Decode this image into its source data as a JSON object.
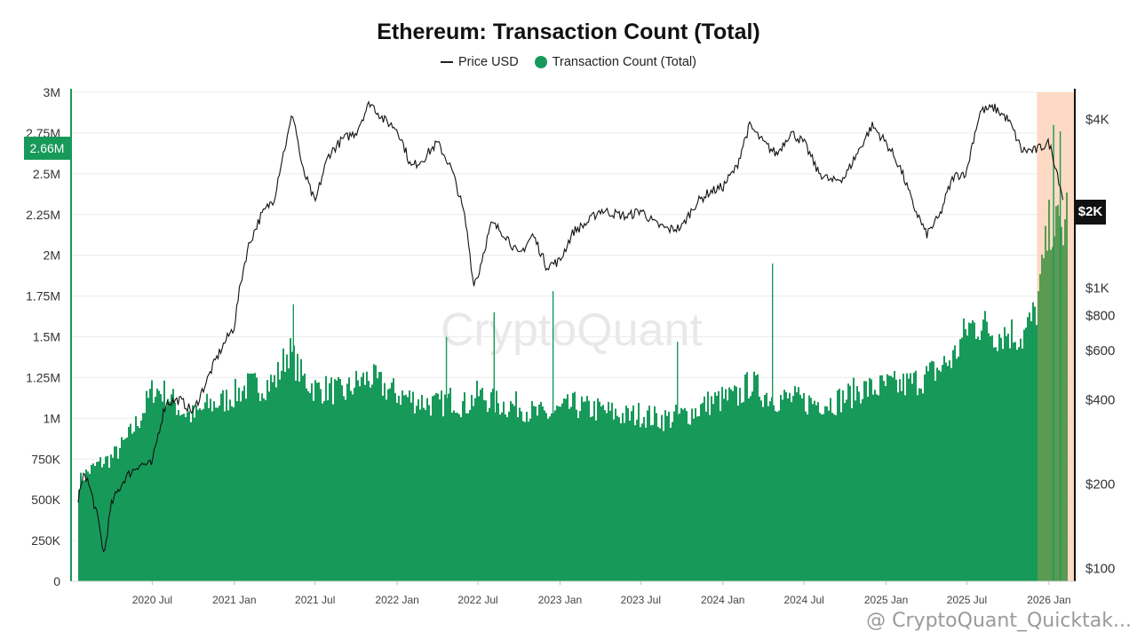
{
  "chart_data": {
    "type": "area",
    "title": "Ethereum: Transaction Count (Total)",
    "legend": {
      "placement": "top-center",
      "entries": [
        {
          "label": "Price USD",
          "marker": "line",
          "color": "#222222"
        },
        {
          "label": "Transaction Count (Total)",
          "marker": "dot",
          "color": "#17995a"
        }
      ]
    },
    "x_axis": {
      "type": "date",
      "range": [
        "2020-01-01",
        "2026-02-28"
      ],
      "tick_labels": [
        "2020 Jul",
        "2021 Jan",
        "2021 Jul",
        "2022 Jan",
        "2022 Jul",
        "2023 Jan",
        "2023 Jul",
        "2024 Jan",
        "2024 Jul",
        "2025 Jan",
        "2025 Jul",
        "2026 Jan"
      ]
    },
    "y_left": {
      "label": "",
      "range": [
        0,
        3000000
      ],
      "tick_labels": [
        "0",
        "250K",
        "500K",
        "750K",
        "1M",
        "1.25M",
        "1.5M",
        "1.75M",
        "2M",
        "2.25M",
        "2.5M",
        "2.75M",
        "3M"
      ],
      "current_value_label": "2.66M"
    },
    "y_right": {
      "label": "",
      "scale": "log",
      "range": [
        90,
        5000
      ],
      "tick_labels": [
        "$100",
        "$200",
        "$400",
        "$600",
        "$800",
        "$1K",
        "$4K"
      ],
      "current_value_label": "$2K"
    },
    "grid": true,
    "highlight_region": {
      "start": "2025-12-05",
      "end": "2026-02-28",
      "color": "#fbd3b8"
    },
    "series": [
      {
        "name": "Transaction Count (Total)",
        "type": "area",
        "color": "#17995a",
        "points": [
          [
            "2020-01-01",
            560000
          ],
          [
            "2020-02-01",
            660000
          ],
          [
            "2020-03-01",
            720000
          ],
          [
            "2020-04-01",
            760000
          ],
          [
            "2020-05-01",
            860000
          ],
          [
            "2020-06-01",
            1000000
          ],
          [
            "2020-07-01",
            1180000
          ],
          [
            "2020-08-01",
            1150000
          ],
          [
            "2020-09-01",
            1050000
          ],
          [
            "2020-10-01",
            1010000
          ],
          [
            "2020-11-01",
            1080000
          ],
          [
            "2020-12-01",
            1100000
          ],
          [
            "2021-01-01",
            1150000
          ],
          [
            "2021-02-01",
            1200000
          ],
          [
            "2021-03-01",
            1200000
          ],
          [
            "2021-04-01",
            1230000
          ],
          [
            "2021-05-01",
            1420000
          ],
          [
            "2021-06-01",
            1250000
          ],
          [
            "2021-07-01",
            1180000
          ],
          [
            "2021-08-01",
            1180000
          ],
          [
            "2021-09-01",
            1150000
          ],
          [
            "2021-10-01",
            1220000
          ],
          [
            "2021-11-01",
            1250000
          ],
          [
            "2021-12-01",
            1190000
          ],
          [
            "2022-01-01",
            1150000
          ],
          [
            "2022-02-01",
            1120000
          ],
          [
            "2022-03-01",
            1100000
          ],
          [
            "2022-04-01",
            1080000
          ],
          [
            "2022-05-01",
            1120000
          ],
          [
            "2022-06-01",
            1080000
          ],
          [
            "2022-07-01",
            1150000
          ],
          [
            "2022-08-01",
            1100000
          ],
          [
            "2022-09-01",
            1080000
          ],
          [
            "2022-10-01",
            1080000
          ],
          [
            "2022-11-01",
            1030000
          ],
          [
            "2022-12-01",
            1020000
          ],
          [
            "2023-01-01",
            1050000
          ],
          [
            "2023-02-01",
            1080000
          ],
          [
            "2023-03-01",
            1060000
          ],
          [
            "2023-04-01",
            1050000
          ],
          [
            "2023-05-01",
            1030000
          ],
          [
            "2023-06-01",
            1010000
          ],
          [
            "2023-07-01",
            1030000
          ],
          [
            "2023-08-01",
            1000000
          ],
          [
            "2023-09-01",
            1000000
          ],
          [
            "2023-10-01",
            1020000
          ],
          [
            "2023-11-01",
            1050000
          ],
          [
            "2023-12-01",
            1100000
          ],
          [
            "2024-01-01",
            1120000
          ],
          [
            "2024-02-01",
            1130000
          ],
          [
            "2024-03-01",
            1220000
          ],
          [
            "2024-04-01",
            1150000
          ],
          [
            "2024-05-01",
            1120000
          ],
          [
            "2024-06-01",
            1120000
          ],
          [
            "2024-07-01",
            1100000
          ],
          [
            "2024-08-01",
            1100000
          ],
          [
            "2024-09-01",
            1100000
          ],
          [
            "2024-10-01",
            1130000
          ],
          [
            "2024-11-01",
            1180000
          ],
          [
            "2024-12-01",
            1180000
          ],
          [
            "2025-01-01",
            1200000
          ],
          [
            "2025-02-01",
            1200000
          ],
          [
            "2025-03-01",
            1220000
          ],
          [
            "2025-04-01",
            1260000
          ],
          [
            "2025-05-01",
            1310000
          ],
          [
            "2025-06-01",
            1380000
          ],
          [
            "2025-07-01",
            1560000
          ],
          [
            "2025-08-01",
            1580000
          ],
          [
            "2025-09-01",
            1520000
          ],
          [
            "2025-10-01",
            1530000
          ],
          [
            "2025-11-01",
            1500000
          ],
          [
            "2025-12-01",
            1650000
          ],
          [
            "2026-01-01",
            2200000
          ],
          [
            "2026-02-01",
            2150000
          ],
          [
            "2026-02-28",
            2660000
          ]
        ],
        "spikes": [
          [
            "2021-05-12",
            1700000
          ],
          [
            "2022-04-20",
            1500000
          ],
          [
            "2022-08-05",
            1650000
          ],
          [
            "2022-12-15",
            1780000
          ],
          [
            "2023-09-20",
            1470000
          ],
          [
            "2024-04-20",
            1950000
          ],
          [
            "2026-01-10",
            2800000
          ],
          [
            "2026-01-25",
            2760000
          ]
        ]
      },
      {
        "name": "Price USD",
        "type": "line",
        "color": "#111111",
        "axis": "right",
        "points": [
          [
            "2020-01-01",
            130
          ],
          [
            "2020-02-01",
            220
          ],
          [
            "2020-03-01",
            150
          ],
          [
            "2020-03-15",
            110
          ],
          [
            "2020-04-01",
            170
          ],
          [
            "2020-05-01",
            210
          ],
          [
            "2020-06-01",
            235
          ],
          [
            "2020-07-01",
            235
          ],
          [
            "2020-08-01",
            390
          ],
          [
            "2020-09-01",
            400
          ],
          [
            "2020-10-01",
            360
          ],
          [
            "2020-11-01",
            470
          ],
          [
            "2020-12-01",
            600
          ],
          [
            "2021-01-01",
            730
          ],
          [
            "2021-02-01",
            1400
          ],
          [
            "2021-03-01",
            1800
          ],
          [
            "2021-04-01",
            2100
          ],
          [
            "2021-05-01",
            3500
          ],
          [
            "2021-05-12",
            4200
          ],
          [
            "2021-06-01",
            2700
          ],
          [
            "2021-07-01",
            2000
          ],
          [
            "2021-08-01",
            3000
          ],
          [
            "2021-09-01",
            3400
          ],
          [
            "2021-10-01",
            3600
          ],
          [
            "2021-11-01",
            4600
          ],
          [
            "2021-12-01",
            4000
          ],
          [
            "2022-01-01",
            3700
          ],
          [
            "2022-02-01",
            2700
          ],
          [
            "2022-03-01",
            2900
          ],
          [
            "2022-04-01",
            3300
          ],
          [
            "2022-05-01",
            2700
          ],
          [
            "2022-06-01",
            1800
          ],
          [
            "2022-06-20",
            1050
          ],
          [
            "2022-07-01",
            1100
          ],
          [
            "2022-08-01",
            1700
          ],
          [
            "2022-09-01",
            1550
          ],
          [
            "2022-10-01",
            1300
          ],
          [
            "2022-11-01",
            1550
          ],
          [
            "2022-12-01",
            1200
          ],
          [
            "2023-01-01",
            1250
          ],
          [
            "2023-02-01",
            1600
          ],
          [
            "2023-03-01",
            1700
          ],
          [
            "2023-04-01",
            1900
          ],
          [
            "2023-05-01",
            1850
          ],
          [
            "2023-06-01",
            1800
          ],
          [
            "2023-07-01",
            1900
          ],
          [
            "2023-08-01",
            1700
          ],
          [
            "2023-09-01",
            1620
          ],
          [
            "2023-10-01",
            1650
          ],
          [
            "2023-11-01",
            2000
          ],
          [
            "2023-12-01",
            2200
          ],
          [
            "2024-01-01",
            2300
          ],
          [
            "2024-02-01",
            2700
          ],
          [
            "2024-03-01",
            3800
          ],
          [
            "2024-04-01",
            3300
          ],
          [
            "2024-05-01",
            3000
          ],
          [
            "2024-06-01",
            3600
          ],
          [
            "2024-07-01",
            3300
          ],
          [
            "2024-08-01",
            2600
          ],
          [
            "2024-09-01",
            2400
          ],
          [
            "2024-10-01",
            2500
          ],
          [
            "2024-11-01",
            3100
          ],
          [
            "2024-12-01",
            3800
          ],
          [
            "2025-01-01",
            3300
          ],
          [
            "2025-02-01",
            2700
          ],
          [
            "2025-03-01",
            2000
          ],
          [
            "2025-04-01",
            1550
          ],
          [
            "2025-05-01",
            1800
          ],
          [
            "2025-06-01",
            2500
          ],
          [
            "2025-07-01",
            2600
          ],
          [
            "2025-08-01",
            4300
          ],
          [
            "2025-09-01",
            4400
          ],
          [
            "2025-10-01",
            4000
          ],
          [
            "2025-11-01",
            3100
          ],
          [
            "2025-12-01",
            3100
          ],
          [
            "2026-01-01",
            3300
          ],
          [
            "2026-02-01",
            2100
          ],
          [
            "2026-02-28",
            2000
          ]
        ]
      }
    ]
  },
  "watermark": "CryptoQuant",
  "footer_handle": "@ CryptoQuant_Quicktak..."
}
